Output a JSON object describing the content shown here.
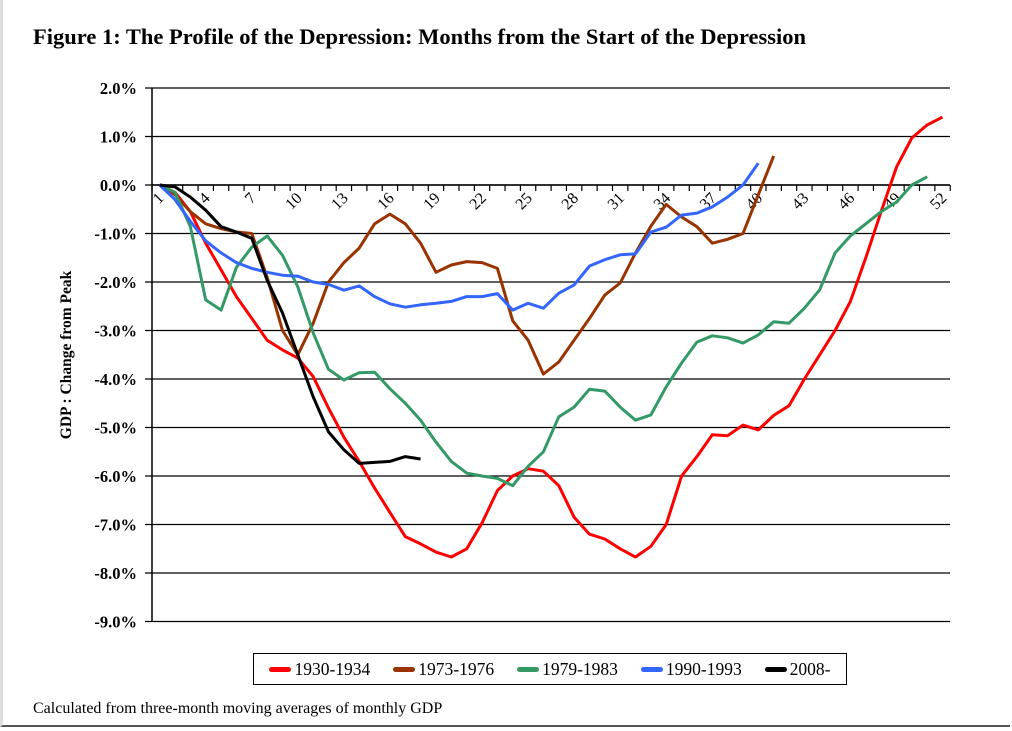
{
  "title": "Figure 1: The Profile of the Depression: Months from the Start of the Depression",
  "footnote": "Calculated from three-month moving averages of monthly GDP",
  "chart_data": {
    "type": "line",
    "title": "Figure 1: The Profile of the Depression: Months from the Start of the Depression",
    "xlabel": "",
    "ylabel": "GDP : Change from Peak",
    "x_categories_count": 52,
    "x_tick_labels": [
      "1",
      "4",
      "7",
      "10",
      "13",
      "16",
      "19",
      "22",
      "25",
      "28",
      "31",
      "34",
      "37",
      "40",
      "43",
      "46",
      "49",
      "52"
    ],
    "y_tick_labels": [
      "2.0%",
      "1.0%",
      "0.0%",
      "-1.0%",
      "-2.0%",
      "-3.0%",
      "-4.0%",
      "-5.0%",
      "-6.0%",
      "-7.0%",
      "-8.0%",
      "-9.0%"
    ],
    "ylim": [
      -9,
      2
    ],
    "y_unit": "%",
    "grid": true,
    "legend_position": "bottom",
    "series": [
      {
        "name": "1930-1934",
        "color": "#ff0000",
        "values": [
          0,
          -0.15,
          -0.55,
          -1.2,
          -1.75,
          -2.3,
          -2.75,
          -3.2,
          -3.4,
          -3.57,
          -3.95,
          -4.6,
          -5.2,
          -5.7,
          -6.25,
          -6.75,
          -7.25,
          -7.4,
          -7.57,
          -7.67,
          -7.5,
          -6.97,
          -6.3,
          -6.0,
          -5.85,
          -5.9,
          -6.2,
          -6.85,
          -7.2,
          -7.3,
          -7.5,
          -7.67,
          -7.45,
          -7.0,
          -6.0,
          -5.6,
          -5.15,
          -5.17,
          -4.95,
          -5.05,
          -4.75,
          -4.55,
          -4.0,
          -3.5,
          -3.0,
          -2.4,
          -1.5,
          -0.55,
          0.37,
          0.97,
          1.24,
          1.4
        ]
      },
      {
        "name": "1973-1976",
        "color": "#993300",
        "values": [
          0,
          -0.2,
          -0.55,
          -0.8,
          -0.9,
          -0.97,
          -1.0,
          -1.9,
          -3.0,
          -3.5,
          -2.85,
          -2.0,
          -1.6,
          -1.3,
          -0.8,
          -0.6,
          -0.8,
          -1.2,
          -1.8,
          -1.65,
          -1.58,
          -1.6,
          -1.72,
          -2.8,
          -3.2,
          -3.9,
          -3.65,
          -3.2,
          -2.75,
          -2.27,
          -2.02,
          -1.4,
          -0.85,
          -0.4,
          -0.66,
          -0.86,
          -1.2,
          -1.12,
          -1.0,
          -0.2,
          0.6
        ]
      },
      {
        "name": "1979-1983",
        "color": "#339966",
        "values": [
          0,
          -0.15,
          -0.86,
          -2.37,
          -2.58,
          -1.7,
          -1.28,
          -1.05,
          -1.45,
          -2.1,
          -3.05,
          -3.8,
          -4.02,
          -3.87,
          -3.86,
          -4.2,
          -4.5,
          -4.85,
          -5.3,
          -5.7,
          -5.94,
          -6.0,
          -6.05,
          -6.2,
          -5.8,
          -5.5,
          -4.78,
          -4.58,
          -4.21,
          -4.25,
          -4.58,
          -4.85,
          -4.74,
          -4.16,
          -3.67,
          -3.24,
          -3.11,
          -3.15,
          -3.26,
          -3.09,
          -2.82,
          -2.85,
          -2.54,
          -2.16,
          -1.4,
          -1.05,
          -0.8,
          -0.55,
          -0.35,
          0.0,
          0.17
        ]
      },
      {
        "name": "1990-1993",
        "color": "#3366ff",
        "values": [
          0,
          -0.3,
          -0.75,
          -1.15,
          -1.4,
          -1.6,
          -1.72,
          -1.8,
          -1.86,
          -1.88,
          -2.0,
          -2.05,
          -2.17,
          -2.08,
          -2.3,
          -2.45,
          -2.52,
          -2.47,
          -2.44,
          -2.4,
          -2.3,
          -2.3,
          -2.24,
          -2.58,
          -2.44,
          -2.54,
          -2.23,
          -2.06,
          -1.67,
          -1.54,
          -1.44,
          -1.42,
          -0.97,
          -0.87,
          -0.62,
          -0.58,
          -0.45,
          -0.25,
          0.0,
          0.45
        ]
      },
      {
        "name": "2008-",
        "color": "#000000",
        "values": [
          0,
          -0.04,
          -0.25,
          -0.52,
          -0.86,
          -0.97,
          -1.1,
          -1.96,
          -2.64,
          -3.5,
          -4.37,
          -5.09,
          -5.46,
          -5.74,
          -5.72,
          -5.7,
          -5.6,
          -5.65
        ]
      }
    ]
  }
}
